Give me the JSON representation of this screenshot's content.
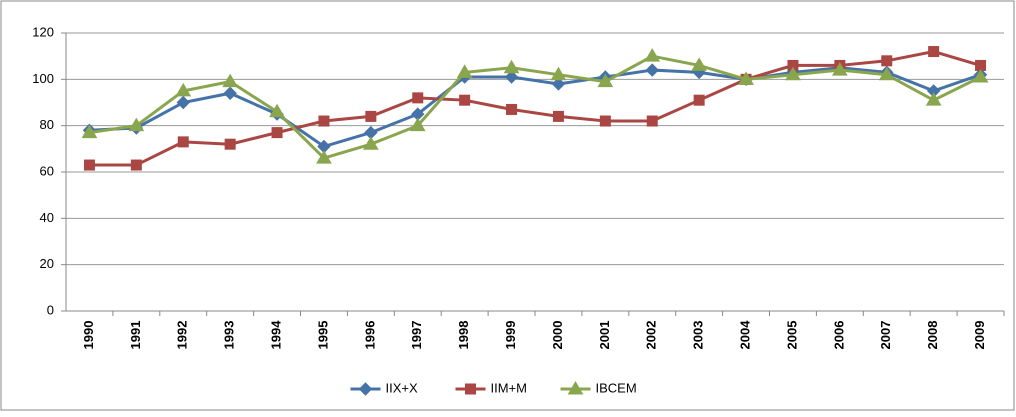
{
  "chart_data": {
    "type": "line",
    "categories": [
      "1990",
      "1991",
      "1992",
      "1993",
      "1994",
      "1995",
      "1996",
      "1997",
      "1998",
      "1999",
      "2000",
      "2001",
      "2002",
      "2003",
      "2004",
      "2005",
      "2006",
      "2007",
      "2008",
      "2009"
    ],
    "series": [
      {
        "name": "IIX+X",
        "color": "#4572a7",
        "marker": "diamond",
        "values": [
          78,
          79,
          90,
          94,
          85,
          71,
          77,
          85,
          101,
          101,
          98,
          101,
          104,
          103,
          100,
          103,
          105,
          103,
          95,
          102
        ]
      },
      {
        "name": "IIM+M",
        "color": "#aa4643",
        "marker": "square",
        "values": [
          63,
          63,
          73,
          72,
          77,
          82,
          84,
          92,
          91,
          87,
          84,
          82,
          82,
          91,
          100,
          106,
          106,
          108,
          112,
          106
        ]
      },
      {
        "name": "IBCEM",
        "color": "#89a54e",
        "marker": "triangle",
        "values": [
          77,
          80,
          95,
          99,
          86,
          66,
          72,
          80,
          103,
          105,
          102,
          99,
          110,
          106,
          100,
          102,
          104,
          102,
          91,
          101
        ]
      }
    ],
    "ylim": [
      0,
      120
    ],
    "yticks": [
      0,
      20,
      40,
      60,
      80,
      100,
      120
    ],
    "grid": true,
    "legend": "bottom"
  }
}
